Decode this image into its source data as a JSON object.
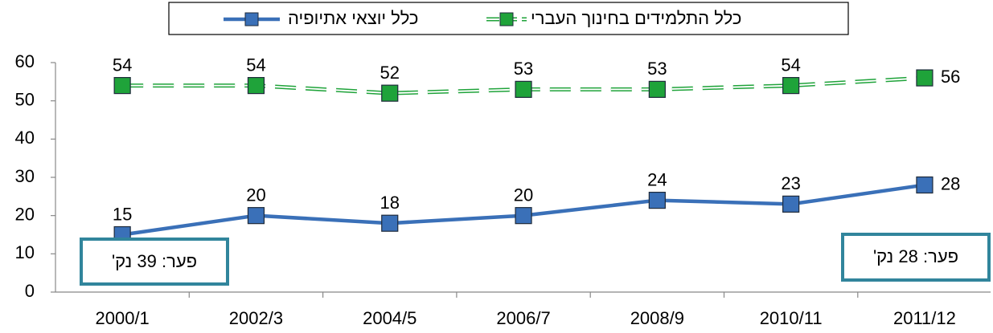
{
  "chart_data": {
    "type": "line",
    "categories": [
      "2000/1",
      "2002/3",
      "2004/5",
      "2006/7",
      "2008/9",
      "2010/11",
      "2011/12"
    ],
    "series": [
      {
        "name": "כלל יוצאי אתיופיה",
        "color": "#3a70b8",
        "values": [
          15,
          20,
          18,
          20,
          24,
          23,
          28
        ]
      },
      {
        "name": "כלל התלמידים בחינוך העברי",
        "color": "#1fa33a",
        "dashed": true,
        "values": [
          54,
          54,
          52,
          53,
          53,
          54,
          56
        ]
      }
    ],
    "ylim": [
      0,
      60
    ],
    "yticks": [
      0,
      10,
      20,
      30,
      40,
      50,
      60
    ],
    "annotations": [
      "פער: 39 נק'",
      "פער: 28 נק'"
    ],
    "legend": "top"
  }
}
